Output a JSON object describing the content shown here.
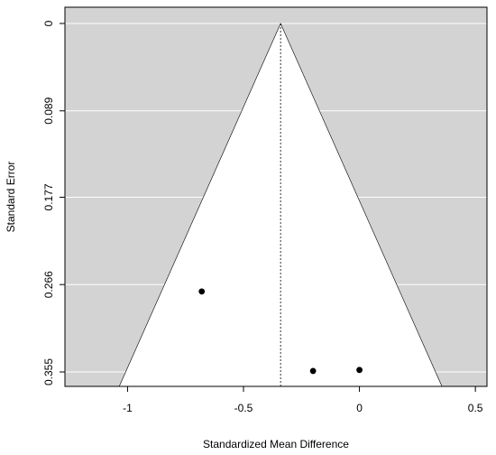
{
  "chart_data": {
    "type": "scatter",
    "subtype": "funnel-plot",
    "title": "",
    "xlabel": "Standardized Mean Difference",
    "ylabel": "Standard Error",
    "xlim": [
      -1.27,
      0.55
    ],
    "ylim": [
      0.355,
      0
    ],
    "y_reversed": true,
    "x_ticks": [
      -1,
      -0.5,
      0,
      0.5
    ],
    "x_tick_labels": [
      "-1",
      "-0.5",
      "0",
      "0.5"
    ],
    "y_ticks": [
      0,
      0.089,
      0.177,
      0.266,
      0.355
    ],
    "y_tick_labels": [
      "0",
      "0.089",
      "0.177",
      "0.266",
      "0.355"
    ],
    "grid": true,
    "background_color": "#d3d3d3",
    "funnel_fill_color": "#ffffff",
    "summary_effect": -0.34,
    "funnel_z": 1.96,
    "points": [
      {
        "x": -0.68,
        "y": 0.273
      },
      {
        "x": -0.2,
        "y": 0.354
      },
      {
        "x": 0.0,
        "y": 0.353
      }
    ]
  }
}
